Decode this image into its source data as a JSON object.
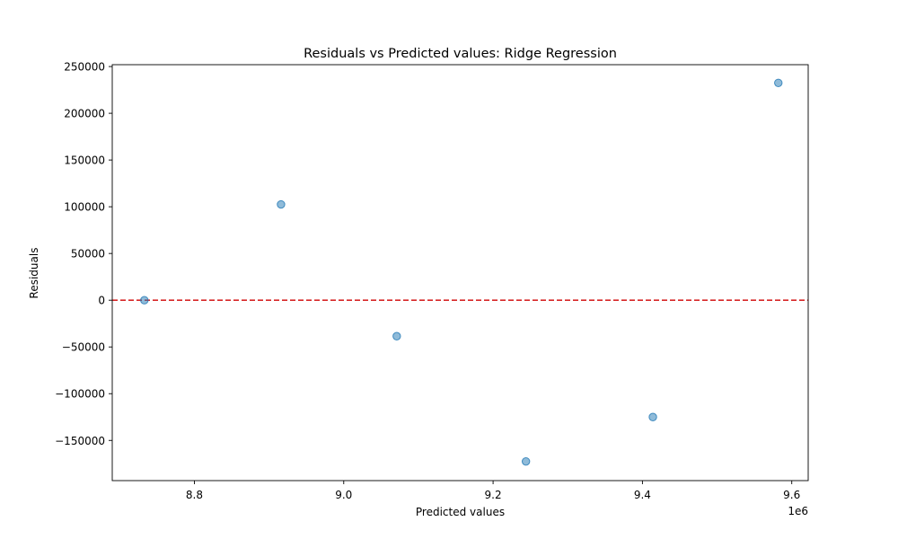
{
  "chart_data": {
    "type": "scatter",
    "title": "Residuals vs Predicted values: Ridge Regression",
    "xlabel": "Predicted values",
    "ylabel": "Residuals",
    "x_offset_label": "1e6",
    "xlim": [
      8690000,
      9622000
    ],
    "ylim": [
      -193000,
      252000
    ],
    "x_ticks": [
      {
        "value": 8800000,
        "label": "8.8"
      },
      {
        "value": 9000000,
        "label": "9.0"
      },
      {
        "value": 9200000,
        "label": "9.2"
      },
      {
        "value": 9400000,
        "label": "9.4"
      },
      {
        "value": 9600000,
        "label": "9.6"
      }
    ],
    "y_ticks": [
      {
        "value": -150000,
        "label": "−150000"
      },
      {
        "value": -100000,
        "label": "−100000"
      },
      {
        "value": -50000,
        "label": "−50000"
      },
      {
        "value": 0,
        "label": "0"
      },
      {
        "value": 50000,
        "label": "50000"
      },
      {
        "value": 100000,
        "label": "100000"
      },
      {
        "value": 150000,
        "label": "150000"
      },
      {
        "value": 200000,
        "label": "200000"
      },
      {
        "value": 250000,
        "label": "250000"
      }
    ],
    "series": [
      {
        "points": [
          {
            "x": 8733000,
            "y": 0
          },
          {
            "x": 8916000,
            "y": 102500
          },
          {
            "x": 9071000,
            "y": -38500
          },
          {
            "x": 9244000,
            "y": -172500
          },
          {
            "x": 9414000,
            "y": -125000
          },
          {
            "x": 9582000,
            "y": 232500
          }
        ],
        "color": "#1f77b4",
        "alpha": 0.5
      }
    ],
    "reference_line": {
      "y": 0,
      "color": "#d62728",
      "style": "dashed"
    },
    "grid": false,
    "legend": "none"
  }
}
